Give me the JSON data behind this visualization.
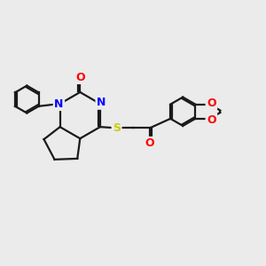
{
  "bg_color": "#ebebeb",
  "bond_color": "#1a1a1a",
  "N_color": "#0000ff",
  "O_color": "#ff0000",
  "S_color": "#cccc00",
  "line_width": 1.6,
  "font_size_atom": 9,
  "fig_width": 3.0,
  "fig_height": 3.0,
  "dpi": 100,
  "xlim": [
    0,
    12
  ],
  "ylim": [
    0,
    10
  ]
}
